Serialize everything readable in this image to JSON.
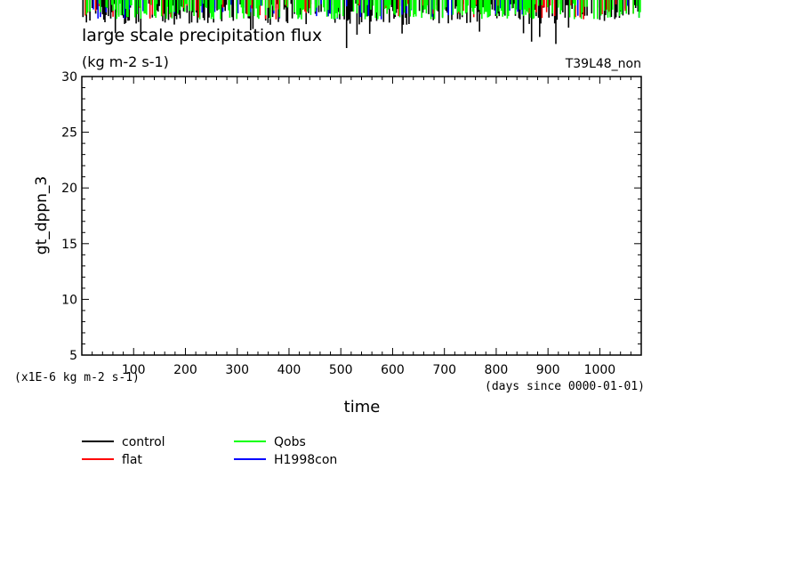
{
  "chart_data": {
    "type": "line",
    "title": "large scale precipitation flux",
    "subtitle": "(kg m-2 s-1)",
    "run_label": "T39L48_non",
    "ylabel": "gt_dppn_3",
    "xlabel": "time",
    "y_unit_note": "(x1E-6 kg m-2 s-1)",
    "x_unit_note": "(days since 0000-01-01)",
    "xlim": [
      0,
      1080
    ],
    "ylim": [
      5,
      30
    ],
    "x_ticks": [
      100,
      200,
      300,
      400,
      500,
      600,
      700,
      800,
      900,
      1000
    ],
    "y_ticks": [
      5,
      10,
      15,
      20,
      25,
      30
    ],
    "grid": false,
    "legend_position": "bottom-left",
    "series": [
      {
        "name": "control",
        "color": "#000000"
      },
      {
        "name": "flat",
        "color": "#ff0000"
      },
      {
        "name": "Qobs",
        "color": "#00ff00"
      },
      {
        "name": "H1998con",
        "color": "#0000ff"
      }
    ],
    "note": "Data traces lie mostly above the 30 upper limit and are clipped; only downward spikes appear above the frame."
  }
}
